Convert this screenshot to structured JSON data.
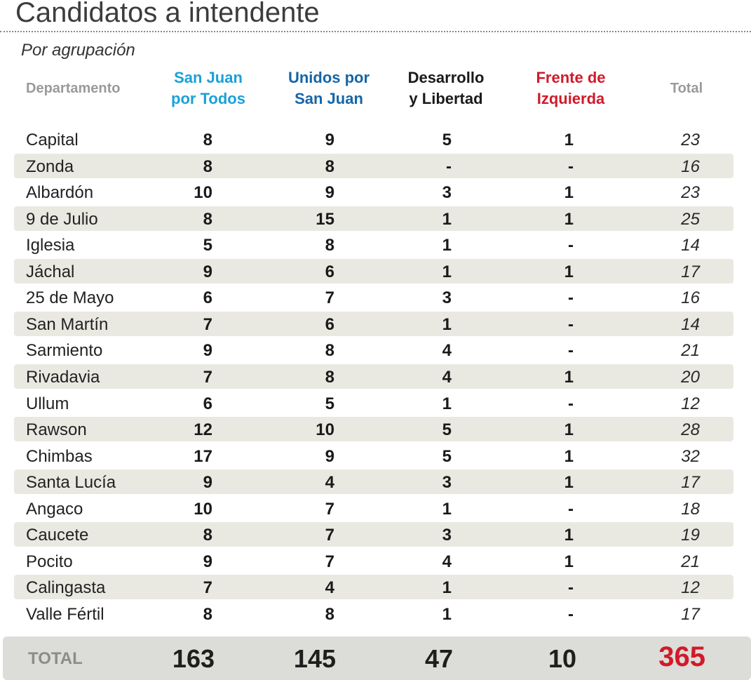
{
  "title": "Candidatos a intendente",
  "subtitle": "Por agrupación",
  "colors": {
    "san_juan_por_todos": "#1aa0d8",
    "unidos_por_san_juan": "#1565a8",
    "desarrollo_y_libertad": "#1a1a1a",
    "frente_de_izquierda": "#d11a2a",
    "grand_total": "#d11a2a"
  },
  "chart_data": {
    "type": "table",
    "columns": [
      {
        "key": "dept",
        "label": "Departamento"
      },
      {
        "key": "sjpt",
        "label": "San Juan\npor Todos"
      },
      {
        "key": "upsj",
        "label": "Unidos por\nSan Juan"
      },
      {
        "key": "dyl",
        "label": "Desarrollo\ny Libertad"
      },
      {
        "key": "fdi",
        "label": "Frente de\nIzquierda"
      },
      {
        "key": "total",
        "label": "Total"
      }
    ],
    "rows": [
      {
        "dept": "Capital",
        "sjpt": "8",
        "upsj": "9",
        "dyl": "5",
        "fdi": "1",
        "total": "23"
      },
      {
        "dept": "Zonda",
        "sjpt": "8",
        "upsj": "8",
        "dyl": "-",
        "fdi": "-",
        "total": "16"
      },
      {
        "dept": "Albardón",
        "sjpt": "10",
        "upsj": "9",
        "dyl": "3",
        "fdi": "1",
        "total": "23"
      },
      {
        "dept": "9 de Julio",
        "sjpt": "8",
        "upsj": "15",
        "dyl": "1",
        "fdi": "1",
        "total": "25"
      },
      {
        "dept": "Iglesia",
        "sjpt": "5",
        "upsj": "8",
        "dyl": "1",
        "fdi": "-",
        "total": "14"
      },
      {
        "dept": "Jáchal",
        "sjpt": "9",
        "upsj": "6",
        "dyl": "1",
        "fdi": "1",
        "total": "17"
      },
      {
        "dept": "25 de Mayo",
        "sjpt": "6",
        "upsj": "7",
        "dyl": "3",
        "fdi": "-",
        "total": "16"
      },
      {
        "dept": "San Martín",
        "sjpt": "7",
        "upsj": "6",
        "dyl": "1",
        "fdi": "-",
        "total": "14"
      },
      {
        "dept": "Sarmiento",
        "sjpt": "9",
        "upsj": "8",
        "dyl": "4",
        "fdi": "-",
        "total": "21"
      },
      {
        "dept": "Rivadavia",
        "sjpt": "7",
        "upsj": "8",
        "dyl": "4",
        "fdi": "1",
        "total": "20"
      },
      {
        "dept": "Ullum",
        "sjpt": "6",
        "upsj": "5",
        "dyl": "1",
        "fdi": "-",
        "total": "12"
      },
      {
        "dept": "Rawson",
        "sjpt": "12",
        "upsj": "10",
        "dyl": "5",
        "fdi": "1",
        "total": "28"
      },
      {
        "dept": "Chimbas",
        "sjpt": "17",
        "upsj": "9",
        "dyl": "5",
        "fdi": "1",
        "total": "32"
      },
      {
        "dept": "Santa Lucía",
        "sjpt": "9",
        "upsj": "4",
        "dyl": "3",
        "fdi": "1",
        "total": "17"
      },
      {
        "dept": "Angaco",
        "sjpt": "10",
        "upsj": "7",
        "dyl": "1",
        "fdi": "-",
        "total": "18"
      },
      {
        "dept": "Caucete",
        "sjpt": "8",
        "upsj": "7",
        "dyl": "3",
        "fdi": "1",
        "total": "19"
      },
      {
        "dept": "Pocito",
        "sjpt": "9",
        "upsj": "7",
        "dyl": "4",
        "fdi": "1",
        "total": "21"
      },
      {
        "dept": "Calingasta",
        "sjpt": "7",
        "upsj": "4",
        "dyl": "1",
        "fdi": "-",
        "total": "12"
      },
      {
        "dept": "Valle Fértil",
        "sjpt": "8",
        "upsj": "8",
        "dyl": "1",
        "fdi": "-",
        "total": "17"
      }
    ],
    "totals": {
      "label": "TOTAL",
      "sjpt": "163",
      "upsj": "145",
      "dyl": "47",
      "fdi": "10",
      "total": "365"
    }
  }
}
